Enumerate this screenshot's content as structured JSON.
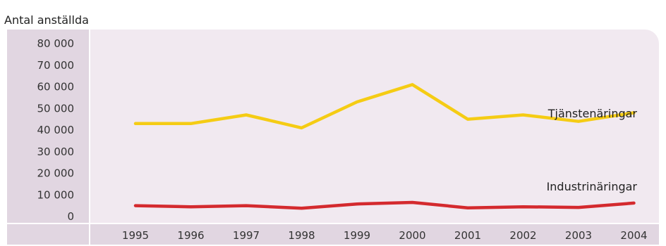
{
  "chart_data": {
    "type": "line",
    "ylabel": "Antal anställda",
    "xlabel": "",
    "x": [
      "1995",
      "1996",
      "1997",
      "1998",
      "1999",
      "2000",
      "2001",
      "2002",
      "2003",
      "2004"
    ],
    "y_ticks": [
      "80 000",
      "70 000",
      "60 000",
      "50 000",
      "40 000",
      "30 000",
      "20 000",
      "10 000",
      "0"
    ],
    "ylim": [
      0,
      80000
    ],
    "grid": false,
    "series": [
      {
        "name": "Tjänstenäringar",
        "color": "#f5cc14",
        "values": [
          43000,
          43000,
          47000,
          41000,
          53000,
          61000,
          45000,
          47000,
          44000,
          48000
        ]
      },
      {
        "name": "Industrinäringar",
        "color": "#d42a2e",
        "values": [
          5000,
          4500,
          5000,
          3800,
          5800,
          6500,
          4000,
          4500,
          4200,
          6200
        ]
      }
    ],
    "colors": {
      "plot_background": "#f1e9f0",
      "axis_band": "#e1d6e1"
    }
  }
}
